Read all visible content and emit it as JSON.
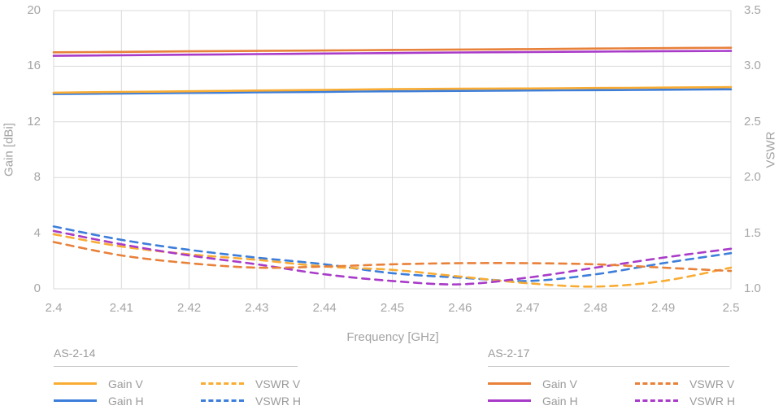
{
  "axes": {
    "gain": {
      "title": "Gain [dBi]",
      "ticks": [
        "20",
        "16",
        "12",
        "8",
        "4",
        "0"
      ],
      "range": [
        0,
        20
      ]
    },
    "vswr": {
      "title": "VSWR",
      "ticks": [
        "3.5",
        "3.0",
        "2.5",
        "2.0",
        "1.5",
        "1.0"
      ],
      "range": [
        1.0,
        3.5
      ]
    },
    "freq": {
      "title": "Frequency [GHz]",
      "ticks": [
        "2.4",
        "2.41",
        "2.42",
        "2.43",
        "2.44",
        "2.45",
        "2.46",
        "2.47",
        "2.48",
        "2.49",
        "2.5"
      ],
      "range": [
        2.4,
        2.5
      ]
    }
  },
  "colors": {
    "as214_v": "#F9AC33",
    "as214_h": "#3D7EDB",
    "as217_v": "#E8813A",
    "as217_h": "#A93BC9",
    "grid": "#D9D9D9",
    "tick_text": "#A6A6A6",
    "legend_text": "#9B9B9B"
  },
  "legend": {
    "groups": [
      {
        "title": "AS-2-14",
        "entries": [
          {
            "label": "Gain V",
            "color": "#F9AC33",
            "dashed": false
          },
          {
            "label": "VSWR V",
            "color": "#F9AC33",
            "dashed": true
          },
          {
            "label": "Gain H",
            "color": "#3D7EDB",
            "dashed": false
          },
          {
            "label": "VSWR H",
            "color": "#3D7EDB",
            "dashed": true
          }
        ]
      },
      {
        "title": "AS-2-17",
        "entries": [
          {
            "label": "Gain V",
            "color": "#E8813A",
            "dashed": false
          },
          {
            "label": "VSWR V",
            "color": "#E8813A",
            "dashed": true
          },
          {
            "label": "Gain H",
            "color": "#A93BC9",
            "dashed": false
          },
          {
            "label": "VSWR H",
            "color": "#A93BC9",
            "dashed": true
          }
        ]
      }
    ]
  },
  "chart_data": {
    "type": "line",
    "x": [
      2.4,
      2.41,
      2.42,
      2.43,
      2.44,
      2.45,
      2.46,
      2.47,
      2.48,
      2.49,
      2.5
    ],
    "xlabel": "Frequency [GHz]",
    "ylabel_left": "Gain [dBi]",
    "ylabel_right": "VSWR",
    "ylim_left": [
      0,
      20
    ],
    "ylim_right": [
      1.0,
      3.5
    ],
    "grid": true,
    "legend_position": "bottom",
    "series": [
      {
        "name": "AS-2-14 Gain H",
        "group": "AS-2-14",
        "label": "Gain H",
        "axis": "left",
        "style": "solid",
        "color": "#3D7EDB",
        "values": [
          14.0,
          14.04,
          14.08,
          14.12,
          14.16,
          14.2,
          14.23,
          14.26,
          14.28,
          14.31,
          14.34
        ]
      },
      {
        "name": "AS-2-14 Gain V",
        "group": "AS-2-14",
        "label": "Gain V",
        "axis": "left",
        "style": "solid",
        "color": "#F9AC33",
        "values": [
          14.1,
          14.15,
          14.2,
          14.25,
          14.3,
          14.35,
          14.38,
          14.4,
          14.43,
          14.46,
          14.5
        ]
      },
      {
        "name": "AS-2-17 Gain H",
        "group": "AS-2-17",
        "label": "Gain H",
        "axis": "left",
        "style": "solid",
        "color": "#A93BC9",
        "values": [
          16.75,
          16.79,
          16.83,
          16.87,
          16.91,
          16.95,
          16.99,
          17.02,
          17.05,
          17.08,
          17.1
        ]
      },
      {
        "name": "AS-2-17 Gain V",
        "group": "AS-2-17",
        "label": "Gain V",
        "axis": "left",
        "style": "solid",
        "color": "#E8813A",
        "values": [
          17.0,
          17.03,
          17.07,
          17.1,
          17.13,
          17.17,
          17.2,
          17.23,
          17.27,
          17.3,
          17.33
        ]
      },
      {
        "name": "AS-2-14 VSWR H",
        "group": "AS-2-14",
        "label": "VSWR H",
        "axis": "right",
        "style": "dashed",
        "color": "#3D7EDB",
        "values": [
          1.56,
          1.44,
          1.35,
          1.28,
          1.22,
          1.14,
          1.1,
          1.07,
          1.13,
          1.23,
          1.32
        ]
      },
      {
        "name": "AS-2-14 VSWR V",
        "group": "AS-2-14",
        "label": "VSWR V",
        "axis": "right",
        "style": "dashed",
        "color": "#F9AC33",
        "values": [
          1.49,
          1.38,
          1.31,
          1.26,
          1.2,
          1.17,
          1.11,
          1.05,
          1.02,
          1.07,
          1.19
        ]
      },
      {
        "name": "AS-2-17 VSWR H",
        "group": "AS-2-17",
        "label": "VSWR H",
        "axis": "right",
        "style": "dashed",
        "color": "#A93BC9",
        "values": [
          1.52,
          1.4,
          1.3,
          1.22,
          1.13,
          1.07,
          1.04,
          1.1,
          1.19,
          1.28,
          1.36
        ]
      },
      {
        "name": "AS-2-17 VSWR V",
        "group": "AS-2-17",
        "label": "VSWR V",
        "axis": "right",
        "style": "dashed",
        "color": "#E8813A",
        "values": [
          1.42,
          1.3,
          1.23,
          1.19,
          1.2,
          1.22,
          1.23,
          1.23,
          1.22,
          1.19,
          1.16
        ]
      }
    ]
  }
}
